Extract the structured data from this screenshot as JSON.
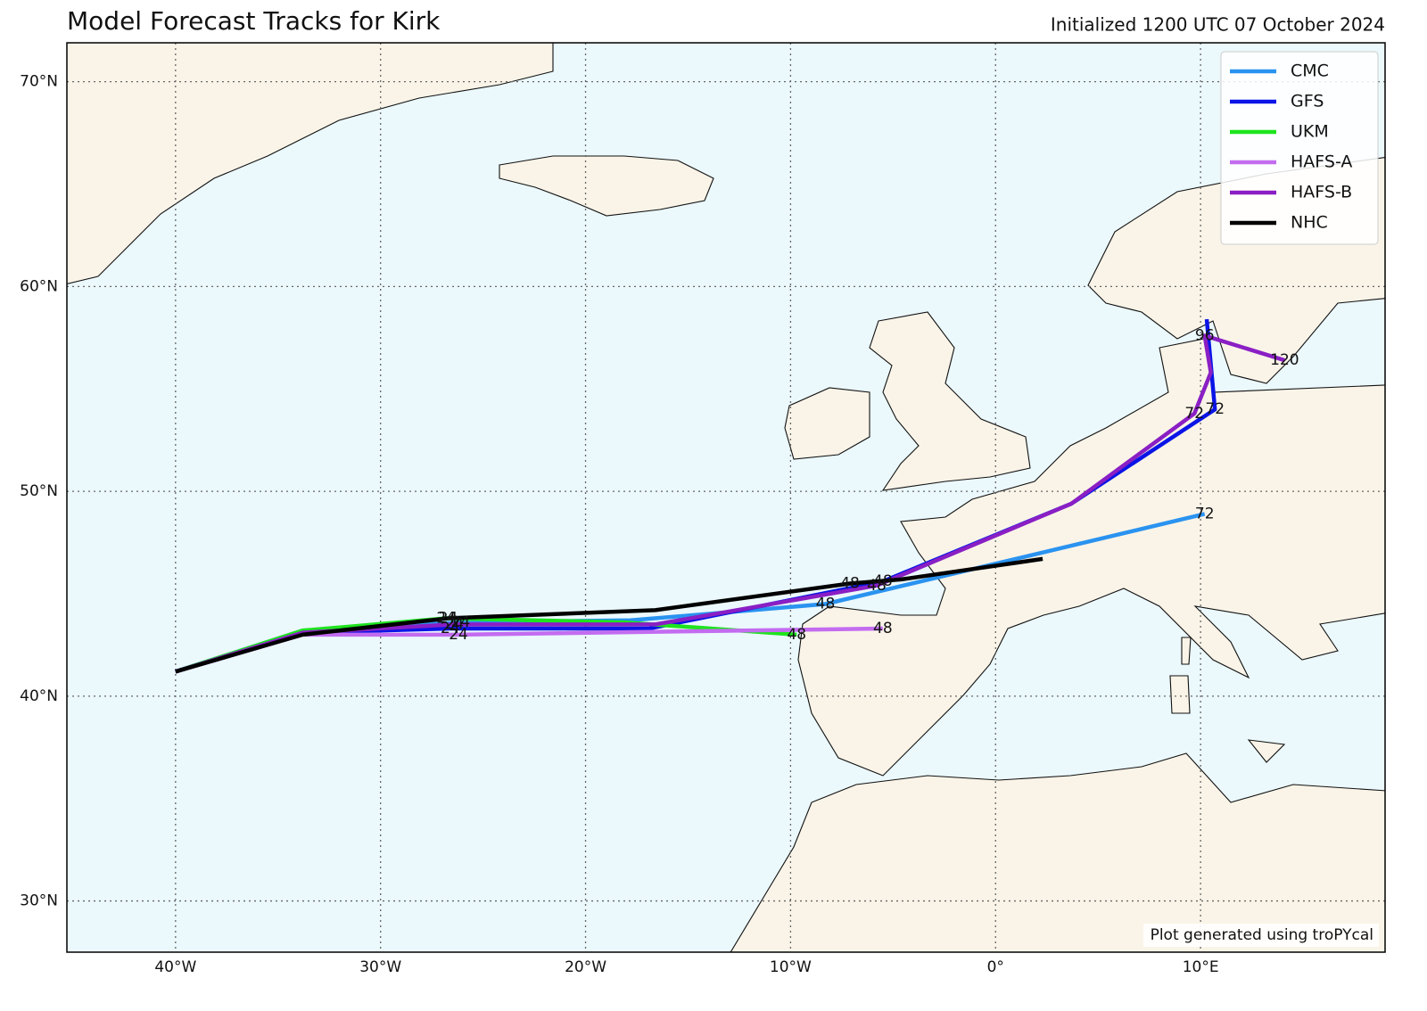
{
  "chart_data": {
    "type": "track",
    "title": "Model Forecast Tracks for Kirk",
    "subtitle": "Initialized 1200 UTC 07 October 2024",
    "note": "Plot generated using troPYcal",
    "xlim": [
      -45.3,
      19.0
    ],
    "ylim": [
      27.5,
      71.9
    ],
    "xticks": [
      {
        "value": -40,
        "label": "40°W"
      },
      {
        "value": -30,
        "label": "30°W"
      },
      {
        "value": -20,
        "label": "20°W"
      },
      {
        "value": -10,
        "label": "10°W"
      },
      {
        "value": 0,
        "label": "0°"
      },
      {
        "value": 10,
        "label": "10°E"
      }
    ],
    "yticks": [
      {
        "value": 30,
        "label": "30°N"
      },
      {
        "value": 40,
        "label": "40°N"
      },
      {
        "value": 50,
        "label": "50°N"
      },
      {
        "value": 60,
        "label": "60°N"
      },
      {
        "value": 70,
        "label": "70°N"
      }
    ],
    "grid": true,
    "legend": "upper right",
    "series": [
      {
        "name": "CMC",
        "color": "#2a93f0",
        "x": [
          -40,
          -33.8,
          -26.1,
          -17.8,
          -8.3,
          -0.7,
          10.2
        ],
        "y": [
          41.2,
          43.2,
          43.6,
          43.7,
          44.5,
          46.3,
          48.9
        ],
        "labels": [
          null,
          null,
          24,
          null,
          48,
          null,
          72
        ]
      },
      {
        "name": "GFS",
        "color": "#0a14e6",
        "x": [
          -40,
          -33.8,
          -26.6,
          -16.9,
          -5.5,
          3.7,
          10.7,
          10.3
        ],
        "y": [
          41.2,
          43.1,
          43.3,
          43.3,
          45.6,
          49.4,
          54.0,
          58.4
        ],
        "labels": [
          null,
          null,
          24,
          null,
          48,
          null,
          72,
          null
        ]
      },
      {
        "name": "UKM",
        "color": "#1ee41e",
        "x": [
          -40,
          -33.8,
          -26.8,
          -18.1,
          -9.7
        ],
        "y": [
          41.2,
          43.2,
          43.8,
          43.6,
          43.0
        ],
        "labels": [
          null,
          null,
          24,
          null,
          48
        ]
      },
      {
        "name": "HAFS-A",
        "color": "#c36cf0",
        "x": [
          -40,
          -33.8,
          -26.2,
          -5.5
        ],
        "y": [
          41.2,
          43.0,
          43.0,
          43.3
        ],
        "labels": [
          null,
          null,
          24,
          48
        ]
      },
      {
        "name": "HAFS-B",
        "color": "#8a1fc4",
        "x": [
          -40,
          -33.8,
          -26.4,
          -16.6,
          -5.8,
          3.7,
          9.7,
          10.5,
          10.2,
          14.1
        ],
        "y": [
          41.2,
          43.1,
          43.5,
          43.5,
          45.4,
          49.4,
          53.8,
          55.8,
          57.6,
          56.4
        ],
        "labels": [
          null,
          null,
          24,
          null,
          48,
          null,
          72,
          null,
          96,
          120
        ]
      },
      {
        "name": "NHC",
        "color": "#000000",
        "x": [
          -40,
          -33.8,
          -26.7,
          -16.6,
          -7.1,
          -4.6,
          2.3
        ],
        "y": [
          41.2,
          43.0,
          43.8,
          44.2,
          45.5,
          45.7,
          46.7
        ],
        "labels": [
          null,
          null,
          24,
          null,
          48,
          null,
          null
        ]
      }
    ]
  }
}
